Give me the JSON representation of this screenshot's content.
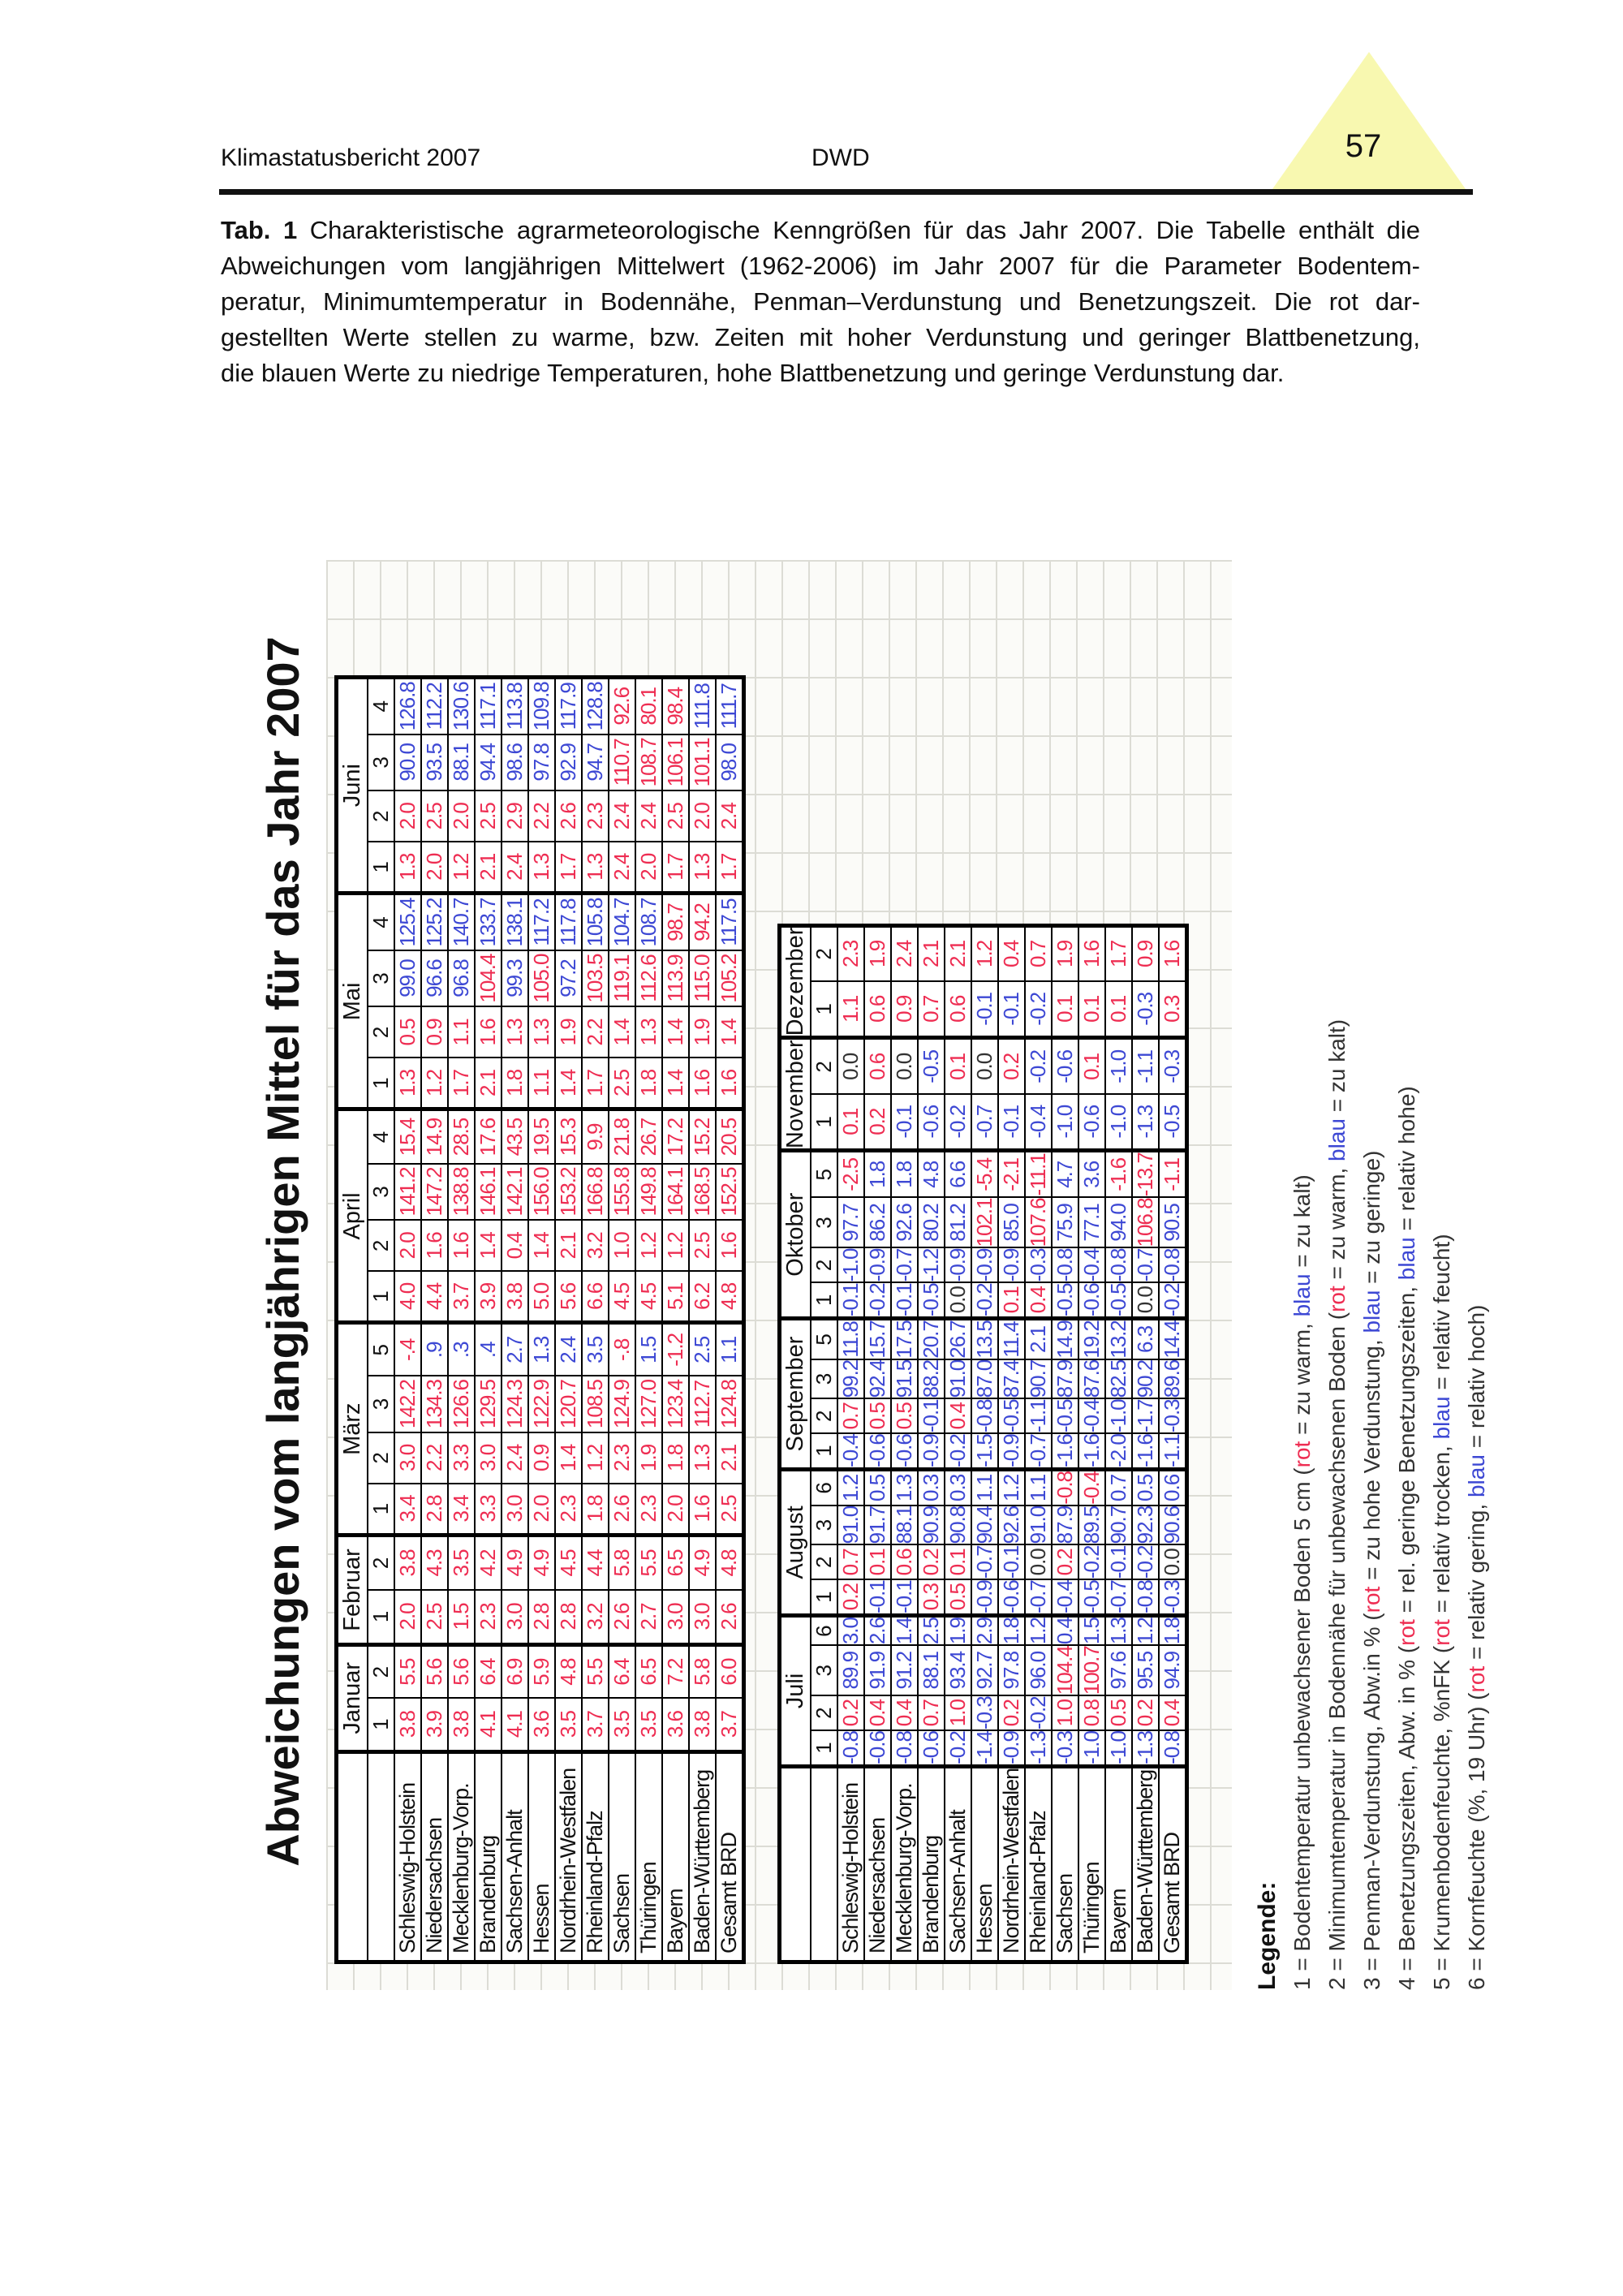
{
  "header": {
    "left": "Klimastatusbericht 2007",
    "center": "DWD",
    "page_number": "57"
  },
  "caption": {
    "label": "Tab. 1",
    "lines": [
      " Charakteristische agrarmeteorologische Kenngrößen für das Jahr 2007. Die Tabelle enthält die",
      "Abweichungen vom langjährigen Mittelwert (1962-2006) im Jahr 2007 für die Parameter Bodentem-",
      "peratur, Minimumtemperatur in Bodennähe, Penman–Verdunstung und Benetzungszeit. Die rot dar-",
      "gestellten Werte stellen zu warme, bzw. Zeiten mit hoher Verdunstung und geringer Blattbenetzung,",
      "die blauen Werte zu niedrige Temperaturen, hohe Blattbenetzung und geringe Verdunstung dar."
    ]
  },
  "table_title": "Abweichungen vom langjährigen Mittel für das Jahr 2007",
  "colors": {
    "warm_red": "#ee2d52",
    "cold_blue": "#3d48d4",
    "neutral_black": "#333333",
    "triangle_yellow": "#f8f8b0"
  },
  "tables": [
    {
      "name": "first-half-year",
      "months": [
        {
          "label": "Januar",
          "params": [
            "1",
            "2"
          ]
        },
        {
          "label": "Februar",
          "params": [
            "1",
            "2"
          ]
        },
        {
          "label": "März",
          "params": [
            "1",
            "2",
            "3",
            "5"
          ]
        },
        {
          "label": "April",
          "params": [
            "1",
            "2",
            "3",
            "4"
          ]
        },
        {
          "label": "Mai",
          "params": [
            "1",
            "2",
            "3",
            "4"
          ]
        },
        {
          "label": "Juni",
          "params": [
            "1",
            "2",
            "3",
            "4"
          ]
        }
      ],
      "rows": [
        {
          "state": "Schleswig-Holstein",
          "cells": [
            "3.8|r",
            "5.5|r",
            "2.0|r",
            "3.8|r",
            "3.4|r",
            "3.0|r",
            "142.2|r",
            "-.4|r",
            "4.0|r",
            "2.0|r",
            "141.2|r",
            "15.4|r",
            "1.3|r",
            "0.5|r",
            "99.0|b",
            "125.4|b",
            "1.3|r",
            "2.0|r",
            "90.0|b",
            "126.8|b"
          ]
        },
        {
          "state": "Niedersachsen",
          "cells": [
            "3.9|r",
            "5.6|r",
            "2.5|r",
            "4.3|r",
            "2.8|r",
            "2.2|r",
            "134.3|r",
            ".9|b",
            "4.4|r",
            "1.6|r",
            "147.2|r",
            "14.9|r",
            "1.2|r",
            "0.9|r",
            "96.6|b",
            "125.2|b",
            "2.0|r",
            "2.5|r",
            "93.5|b",
            "112.2|b"
          ]
        },
        {
          "state": "Mecklenburg-Vorp.",
          "cells": [
            "3.8|r",
            "5.6|r",
            "1.5|r",
            "3.5|r",
            "3.4|r",
            "3.3|r",
            "126.6|r",
            ".3|b",
            "3.7|r",
            "1.6|r",
            "138.8|r",
            "28.5|r",
            "1.7|r",
            "1.1|r",
            "96.8|b",
            "140.7|b",
            "1.2|r",
            "2.0|r",
            "88.1|b",
            "130.6|b"
          ]
        },
        {
          "state": "Brandenburg",
          "cells": [
            "4.1|r",
            "6.4|r",
            "2.3|r",
            "4.2|r",
            "3.3|r",
            "3.0|r",
            "129.5|r",
            ".4|b",
            "3.9|r",
            "1.4|r",
            "146.1|r",
            "17.6|r",
            "2.1|r",
            "1.6|r",
            "104.4|r",
            "133.7|b",
            "2.1|r",
            "2.5|r",
            "94.4|b",
            "117.1|b"
          ]
        },
        {
          "state": "Sachsen-Anhalt",
          "cells": [
            "4.1|r",
            "6.9|r",
            "3.0|r",
            "4.9|r",
            "3.0|r",
            "2.4|r",
            "124.3|r",
            "2.7|b",
            "3.8|r",
            "0.4|r",
            "142.1|r",
            "43.5|r",
            "1.8|r",
            "1.3|r",
            "99.3|b",
            "138.1|b",
            "2.4|r",
            "2.9|r",
            "98.6|b",
            "113.8|b"
          ]
        },
        {
          "state": "Hessen",
          "cells": [
            "3.6|r",
            "5.9|r",
            "2.8|r",
            "4.9|r",
            "2.0|r",
            "0.9|r",
            "122.9|r",
            "1.3|b",
            "5.0|r",
            "1.4|r",
            "156.0|r",
            "19.5|r",
            "1.1|r",
            "1.3|r",
            "105.0|r",
            "117.2|b",
            "1.3|r",
            "2.2|r",
            "97.8|b",
            "109.8|b"
          ]
        },
        {
          "state": "Nordrhein-Westfalen",
          "cells": [
            "3.5|r",
            "4.8|r",
            "2.8|r",
            "4.5|r",
            "2.3|r",
            "1.4|r",
            "120.7|r",
            "2.4|b",
            "5.6|r",
            "2.1|r",
            "153.2|r",
            "15.3|r",
            "1.4|r",
            "1.9|r",
            "97.2|b",
            "117.8|b",
            "1.7|r",
            "2.6|r",
            "92.9|b",
            "117.9|b"
          ]
        },
        {
          "state": "Rheinland-Pfalz",
          "cells": [
            "3.7|r",
            "5.5|r",
            "3.2|r",
            "4.4|r",
            "1.8|r",
            "1.2|r",
            "108.5|r",
            "3.5|b",
            "6.6|r",
            "3.2|r",
            "166.8|r",
            "9.9|r",
            "1.7|r",
            "2.2|r",
            "103.5|r",
            "105.8|b",
            "1.3|r",
            "2.3|r",
            "94.7|b",
            "128.8|b"
          ]
        },
        {
          "state": "Sachsen",
          "cells": [
            "3.5|r",
            "6.4|r",
            "2.6|r",
            "5.8|r",
            "2.6|r",
            "2.3|r",
            "124.9|r",
            "-.8|r",
            "4.5|r",
            "1.0|r",
            "155.8|r",
            "21.8|r",
            "2.5|r",
            "1.4|r",
            "119.1|r",
            "104.7|b",
            "2.4|r",
            "2.4|r",
            "110.7|r",
            "92.6|r"
          ]
        },
        {
          "state": "Thüringen",
          "cells": [
            "3.5|r",
            "6.5|r",
            "2.7|r",
            "5.5|r",
            "2.3|r",
            "1.9|r",
            "127.0|r",
            "1.5|b",
            "4.5|r",
            "1.2|r",
            "149.8|r",
            "26.7|r",
            "1.8|r",
            "1.3|r",
            "112.6|r",
            "108.7|b",
            "2.0|r",
            "2.4|r",
            "108.7|r",
            "80.1|r"
          ]
        },
        {
          "state": "Bayern",
          "cells": [
            "3.6|r",
            "7.2|r",
            "3.0|r",
            "6.5|r",
            "2.0|r",
            "1.8|r",
            "123.4|r",
            "-1.2|r",
            "5.1|r",
            "1.2|r",
            "164.1|r",
            "17.2|r",
            "1.4|r",
            "1.4|r",
            "113.9|r",
            "98.7|r",
            "1.7|r",
            "2.5|r",
            "106.1|r",
            "98.4|r"
          ]
        },
        {
          "state": "Baden-Württemberg",
          "cells": [
            "3.8|r",
            "5.8|r",
            "3.0|r",
            "4.9|r",
            "1.6|r",
            "1.3|r",
            "112.7|r",
            "2.5|b",
            "6.2|r",
            "2.5|r",
            "168.5|r",
            "15.2|r",
            "1.6|r",
            "1.9|r",
            "115.0|r",
            "94.2|r",
            "1.3|r",
            "2.0|r",
            "101.1|r",
            "111.8|b"
          ]
        },
        {
          "state": "Gesamt BRD",
          "cells": [
            "3.7|r",
            "6.0|r",
            "2.6|r",
            "4.8|r",
            "2.5|r",
            "2.1|r",
            "124.8|r",
            "1.1|b",
            "4.8|r",
            "1.6|r",
            "152.5|r",
            "20.5|r",
            "1.6|r",
            "1.4|r",
            "105.2|r",
            "117.5|b",
            "1.7|r",
            "2.4|r",
            "98.0|b",
            "111.7|b"
          ]
        }
      ]
    },
    {
      "name": "second-half-year",
      "months": [
        {
          "label": "Juli",
          "params": [
            "1",
            "2",
            "3",
            "6"
          ]
        },
        {
          "label": "August",
          "params": [
            "1",
            "2",
            "3",
            "6"
          ]
        },
        {
          "label": "September",
          "params": [
            "1",
            "2",
            "3",
            "5"
          ]
        },
        {
          "label": "Oktober",
          "params": [
            "1",
            "2",
            "3",
            "5"
          ]
        },
        {
          "label": "November",
          "params": [
            "1",
            "2"
          ]
        },
        {
          "label": "Dezember",
          "params": [
            "1",
            "2"
          ]
        }
      ],
      "rows": [
        {
          "state": "Schleswig-Holstein",
          "cells": [
            "-0.8|b",
            "0.2|r",
            "89.9|b",
            "3.0|b",
            "0.2|r",
            "0.7|r",
            "91.0|b",
            "1.2|b",
            "-0.4|b",
            "0.7|r",
            "99.2|b",
            "11.8|b",
            "-0.1|b",
            "-1.0|b",
            "97.7|b",
            "-2.5|r",
            "0.1|r",
            "0.0|k",
            "1.1|r",
            "2.3|r"
          ]
        },
        {
          "state": "Niedersachsen",
          "cells": [
            "-0.6|b",
            "0.4|r",
            "91.9|b",
            "2.6|b",
            "-0.1|b",
            "0.1|r",
            "91.7|b",
            "0.5|b",
            "-0.6|b",
            "0.5|r",
            "92.4|b",
            "15.7|b",
            "-0.2|b",
            "-0.9|b",
            "86.2|b",
            "1.8|b",
            "0.2|r",
            "0.6|r",
            "0.6|r",
            "1.9|r"
          ]
        },
        {
          "state": "Mecklenburg-Vorp.",
          "cells": [
            "-0.8|b",
            "0.4|r",
            "91.2|b",
            "1.4|b",
            "-0.1|b",
            "0.6|r",
            "88.1|b",
            "1.3|b",
            "-0.6|b",
            "0.5|r",
            "91.5|b",
            "17.5|b",
            "-0.1|b",
            "-0.7|b",
            "92.6|b",
            "1.8|b",
            "-0.1|b",
            "0.0|k",
            "0.9|r",
            "2.4|r"
          ]
        },
        {
          "state": "Brandenburg",
          "cells": [
            "-0.6|b",
            "0.7|r",
            "88.1|b",
            "2.5|b",
            "0.3|r",
            "0.2|r",
            "90.9|b",
            "0.3|b",
            "-0.9|b",
            "-0.1|b",
            "88.2|b",
            "20.7|b",
            "-0.5|b",
            "-1.2|b",
            "80.2|b",
            "4.8|b",
            "-0.6|b",
            "-0.5|b",
            "0.7|r",
            "2.1|r"
          ]
        },
        {
          "state": "Sachsen-Anhalt",
          "cells": [
            "-0.2|b",
            "1.0|r",
            "93.4|b",
            "1.9|b",
            "0.5|r",
            "0.1|r",
            "90.8|b",
            "0.3|b",
            "-0.2|b",
            "0.4|r",
            "91.0|b",
            "26.7|b",
            "0.0|k",
            "-0.9|b",
            "81.2|b",
            "6.6|b",
            "-0.2|b",
            "0.1|r",
            "0.6|r",
            "2.1|r"
          ]
        },
        {
          "state": "Hessen",
          "cells": [
            "-1.4|b",
            "-0.3|b",
            "92.7|b",
            "2.9|b",
            "-0.9|b",
            "-0.7|b",
            "90.4|b",
            "1.1|b",
            "-1.5|b",
            "-0.8|b",
            "87.0|b",
            "13.5|b",
            "-0.2|b",
            "-0.9|b",
            "102.1|r",
            "-5.4|r",
            "-0.7|b",
            "0.0|k",
            "-0.1|b",
            "1.2|r"
          ]
        },
        {
          "state": "Nordrhein-Westfalen",
          "cells": [
            "-0.9|b",
            "0.2|r",
            "97.8|b",
            "1.8|b",
            "-0.6|b",
            "-0.1|b",
            "92.6|b",
            "1.2|b",
            "-0.9|b",
            "-0.5|b",
            "87.4|b",
            "11.4|b",
            "0.1|r",
            "-0.9|b",
            "85.0|b",
            "-2.1|r",
            "-0.1|b",
            "0.2|r",
            "-0.1|b",
            "0.4|r"
          ]
        },
        {
          "state": "Rheinland-Pfalz",
          "cells": [
            "-1.3|b",
            "-0.2|b",
            "96.0|b",
            "1.2|b",
            "-0.7|b",
            "0.0|k",
            "91.0|b",
            "1.1|b",
            "-0.7|b",
            "-1.1|b",
            "90.7|b",
            "2.1|b",
            "0.4|r",
            "-0.3|b",
            "107.6|r",
            "-11.1|r",
            "-0.4|b",
            "-0.2|b",
            "-0.2|b",
            "0.7|r"
          ]
        },
        {
          "state": "Sachsen",
          "cells": [
            "-0.3|b",
            "1.0|r",
            "104.4|r",
            "0.4|b",
            "-0.4|b",
            "0.2|r",
            "87.9|b",
            "-0.8|r",
            "-1.6|b",
            "-0.5|b",
            "87.9|b",
            "14.9|b",
            "-0.5|b",
            "-0.8|b",
            "75.9|b",
            "4.7|b",
            "-1.0|b",
            "-0.6|b",
            "0.1|r",
            "1.9|r"
          ]
        },
        {
          "state": "Thüringen",
          "cells": [
            "-1.0|b",
            "0.8|r",
            "100.7|r",
            "1.5|b",
            "-0.5|b",
            "-0.2|b",
            "89.5|b",
            "-0.4|r",
            "-1.6|b",
            "-0.4|b",
            "87.6|b",
            "19.2|b",
            "-0.6|b",
            "-0.4|b",
            "77.1|b",
            "3.6|b",
            "-0.6|b",
            "0.1|r",
            "0.1|r",
            "1.6|r"
          ]
        },
        {
          "state": "Bayern",
          "cells": [
            "-1.0|b",
            "0.5|r",
            "97.6|b",
            "1.3|b",
            "-0.7|b",
            "-0.1|b",
            "90.7|b",
            "0.7|b",
            "-2.0|b",
            "-1.0|b",
            "82.5|b",
            "13.2|b",
            "-0.5|b",
            "-0.8|b",
            "94.0|b",
            "-1.6|r",
            "-1.0|b",
            "-1.0|b",
            "0.1|r",
            "1.7|r"
          ]
        },
        {
          "state": "Baden-Württemberg",
          "cells": [
            "-1.3|b",
            "0.2|r",
            "95.5|b",
            "1.2|b",
            "-0.8|b",
            "-0.2|b",
            "92.3|b",
            "0.5|b",
            "-1.6|b",
            "-1.7|b",
            "90.2|b",
            "6.3|b",
            "0.0|k",
            "-0.7|b",
            "106.8|r",
            "-13.7|r",
            "-1.3|b",
            "-1.1|b",
            "-0.3|b",
            "0.9|r"
          ]
        },
        {
          "state": "Gesamt BRD",
          "cells": [
            "-0.8|b",
            "0.4|r",
            "94.9|b",
            "1.8|b",
            "-0.3|b",
            "0.0|k",
            "90.6|b",
            "0.6|b",
            "-1.1|b",
            "-0.3|b",
            "89.6|b",
            "14.4|b",
            "-0.2|b",
            "-0.8|b",
            "90.5|b",
            "-1.1|r",
            "-0.5|b",
            "-0.3|b",
            "0.3|r",
            "1.6|r"
          ]
        }
      ]
    }
  ],
  "legend": {
    "title": "Legende:",
    "lines": [
      [
        {
          "t": "1 = Bodentemperatur unbewachsener Boden 5 cm (",
          "c": "k"
        },
        {
          "t": "rot",
          "c": "r"
        },
        {
          "t": " = zu warm, ",
          "c": "k"
        },
        {
          "t": "blau",
          "c": "b"
        },
        {
          "t": " = zu kalt)",
          "c": "k"
        }
      ],
      [
        {
          "t": "2 = Minimumtemperatur in Bodennähe für unbewachsenen Boden (",
          "c": "k"
        },
        {
          "t": "rot",
          "c": "r"
        },
        {
          "t": " = zu warm, ",
          "c": "k"
        },
        {
          "t": "blau",
          "c": "b"
        },
        {
          "t": " = zu kalt)",
          "c": "k"
        }
      ],
      [
        {
          "t": "3 = Penman-Verdunstung, Abw.in % (",
          "c": "k"
        },
        {
          "t": "rot",
          "c": "r"
        },
        {
          "t": " = zu hohe Verdunstung, ",
          "c": "k"
        },
        {
          "t": "blau",
          "c": "b"
        },
        {
          "t": " = zu geringe)",
          "c": "k"
        }
      ],
      [
        {
          "t": "4 = Benetzungszeiten, Abw. in % (",
          "c": "k"
        },
        {
          "t": "rot",
          "c": "r"
        },
        {
          "t": " = rel. geringe Benetzungszeiten, ",
          "c": "k"
        },
        {
          "t": "blau",
          "c": "b"
        },
        {
          "t": " = relativ hohe)",
          "c": "k"
        }
      ],
      [
        {
          "t": "5 = Krumenbodenfeuchte, %nFK (",
          "c": "k"
        },
        {
          "t": "rot",
          "c": "r"
        },
        {
          "t": " = relativ trocken, ",
          "c": "k"
        },
        {
          "t": "blau",
          "c": "b"
        },
        {
          "t": " = relativ feucht)",
          "c": "k"
        }
      ],
      [
        {
          "t": "6 = Kornfeuchte (%, 19 Uhr) (",
          "c": "k"
        },
        {
          "t": "rot",
          "c": "r"
        },
        {
          "t": " = relativ gering, ",
          "c": "k"
        },
        {
          "t": "blau",
          "c": "b"
        },
        {
          "t": " = relativ hoch)",
          "c": "k"
        }
      ]
    ]
  }
}
